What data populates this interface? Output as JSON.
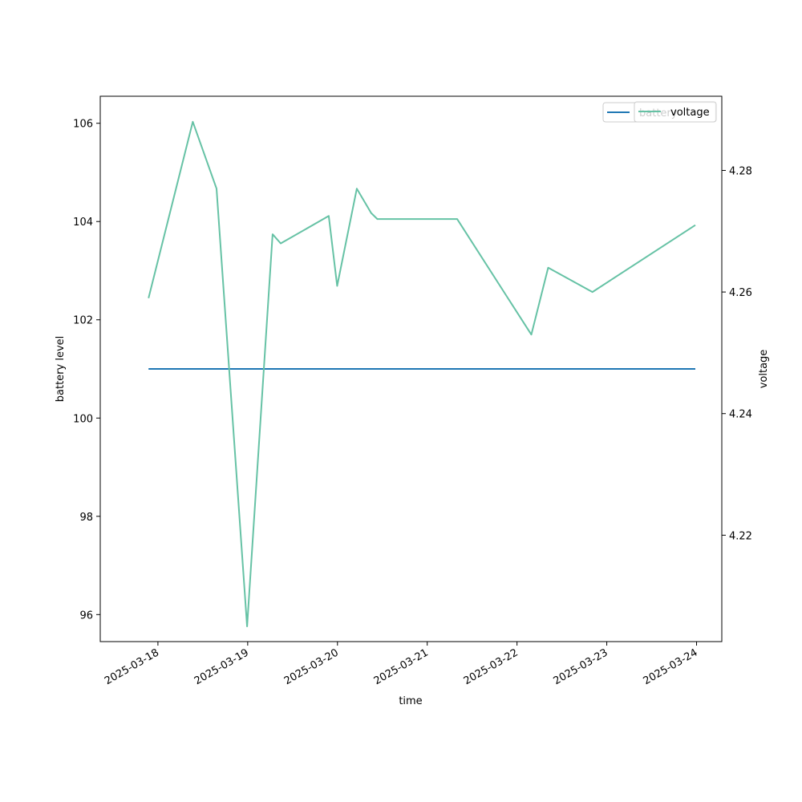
{
  "chart_data": {
    "type": "line",
    "xlabel": "time",
    "ylabel": "battery level",
    "y2label": "voltage",
    "xlim": [
      "2025-03-17T08:35",
      "2025-03-24T06:45"
    ],
    "ylim": [
      95.45,
      106.55
    ],
    "y2lim": [
      4.2025,
      4.2922
    ],
    "x_ticks": [
      "2025-03-18",
      "2025-03-19",
      "2025-03-20",
      "2025-03-21",
      "2025-03-22",
      "2025-03-23",
      "2025-03-24"
    ],
    "y_ticks": [
      96,
      98,
      100,
      102,
      104,
      106
    ],
    "y2_ticks": [
      4.22,
      4.24,
      4.26,
      4.28
    ],
    "y2_tick_labels": [
      "4.22",
      "4.24",
      "4.26",
      "4.28"
    ],
    "legend_placement": "upper-right",
    "series": [
      {
        "name": "battery",
        "axis": "left",
        "color": "#1f77b4",
        "points": [
          {
            "x": "2025-03-17T21:30",
            "y": 101
          },
          {
            "x": "2025-03-23T23:40",
            "y": 101
          }
        ]
      },
      {
        "name": "voltage",
        "axis": "right",
        "color": "#66c2a5",
        "points": [
          {
            "x": "2025-03-17T21:30",
            "y": 4.259
          },
          {
            "x": "2025-03-18T09:20",
            "y": 4.288
          },
          {
            "x": "2025-03-18T15:40",
            "y": 4.277
          },
          {
            "x": "2025-03-18T23:50",
            "y": 4.205
          },
          {
            "x": "2025-03-19T06:40",
            "y": 4.2695
          },
          {
            "x": "2025-03-19T08:50",
            "y": 4.268
          },
          {
            "x": "2025-03-19T21:40",
            "y": 4.2725
          },
          {
            "x": "2025-03-19T23:55",
            "y": 4.261
          },
          {
            "x": "2025-03-20T05:10",
            "y": 4.277
          },
          {
            "x": "2025-03-20T09:00",
            "y": 4.273
          },
          {
            "x": "2025-03-20T10:40",
            "y": 4.272
          },
          {
            "x": "2025-03-21T08:00",
            "y": 4.272
          },
          {
            "x": "2025-03-22T03:50",
            "y": 4.253
          },
          {
            "x": "2025-03-22T08:20",
            "y": 4.264
          },
          {
            "x": "2025-03-22T20:10",
            "y": 4.26
          },
          {
            "x": "2025-03-23T23:40",
            "y": 4.271
          }
        ]
      }
    ]
  }
}
